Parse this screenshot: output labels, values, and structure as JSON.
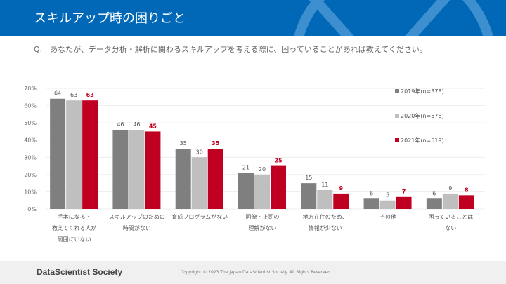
{
  "header": {
    "title": "スキルアップ時の困りごと"
  },
  "question": "Q.　あなたが、データ分析・解析に関わるスキルアップを考える際に、困っていることがあれば教えてください。",
  "footer": {
    "brand": "DataScientist Society",
    "copyright": "Copyright © 2023  The Japan DataScientist Society. All Rights Reserved."
  },
  "chart_data": {
    "type": "bar",
    "ylim": [
      0,
      70
    ],
    "yticks": [
      "0%",
      "10%",
      "20%",
      "30%",
      "40%",
      "50%",
      "60%",
      "70%"
    ],
    "grid": true,
    "legend_position": "right",
    "categories": [
      [
        "手本になる・",
        "教えてくれる人が",
        "周囲にいない"
      ],
      [
        "スキルアップのための",
        "時間がない"
      ],
      [
        "育成プログラムがない"
      ],
      [
        "同僚・上司の",
        "理解がない"
      ],
      [
        "地方在住のため、",
        "情報が少ない"
      ],
      [
        "その他"
      ],
      [
        "困っていることは",
        "ない"
      ]
    ],
    "series": [
      {
        "name": "2019年(n=378)",
        "color": "#7f7f7f",
        "values": [
          64,
          46,
          35,
          21,
          15,
          6,
          6
        ]
      },
      {
        "name": "2020年(n=576)",
        "color": "#bfbfbf",
        "values": [
          63,
          46,
          30,
          20,
          11,
          5,
          9
        ]
      },
      {
        "name": "2021年(n=519)",
        "color": "#c00020",
        "values": [
          63,
          45,
          35,
          25,
          9,
          7,
          8
        ]
      }
    ]
  }
}
